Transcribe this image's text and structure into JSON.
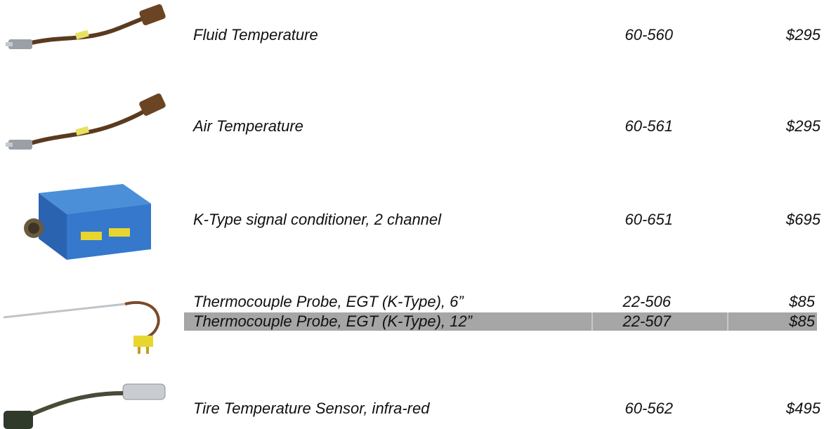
{
  "rows": [
    {
      "description": "Fluid Temperature",
      "part_number": "60-560",
      "price": "$295"
    },
    {
      "description": "Air Temperature",
      "part_number": "60-561",
      "price": "$295"
    },
    {
      "description": "K-Type signal conditioner, 2 channel",
      "part_number": "60-651",
      "price": "$695"
    },
    {
      "description": "Thermocouple Probe, EGT (K-Type), 6”",
      "part_number": "22-506",
      "price": "$85"
    },
    {
      "description": "Thermocouple Probe, EGT (K-Type), 12”",
      "part_number": "22-507",
      "price": "$85"
    },
    {
      "description": "Tire Temperature Sensor, infra-red",
      "part_number": "60-562",
      "price": "$495"
    }
  ]
}
